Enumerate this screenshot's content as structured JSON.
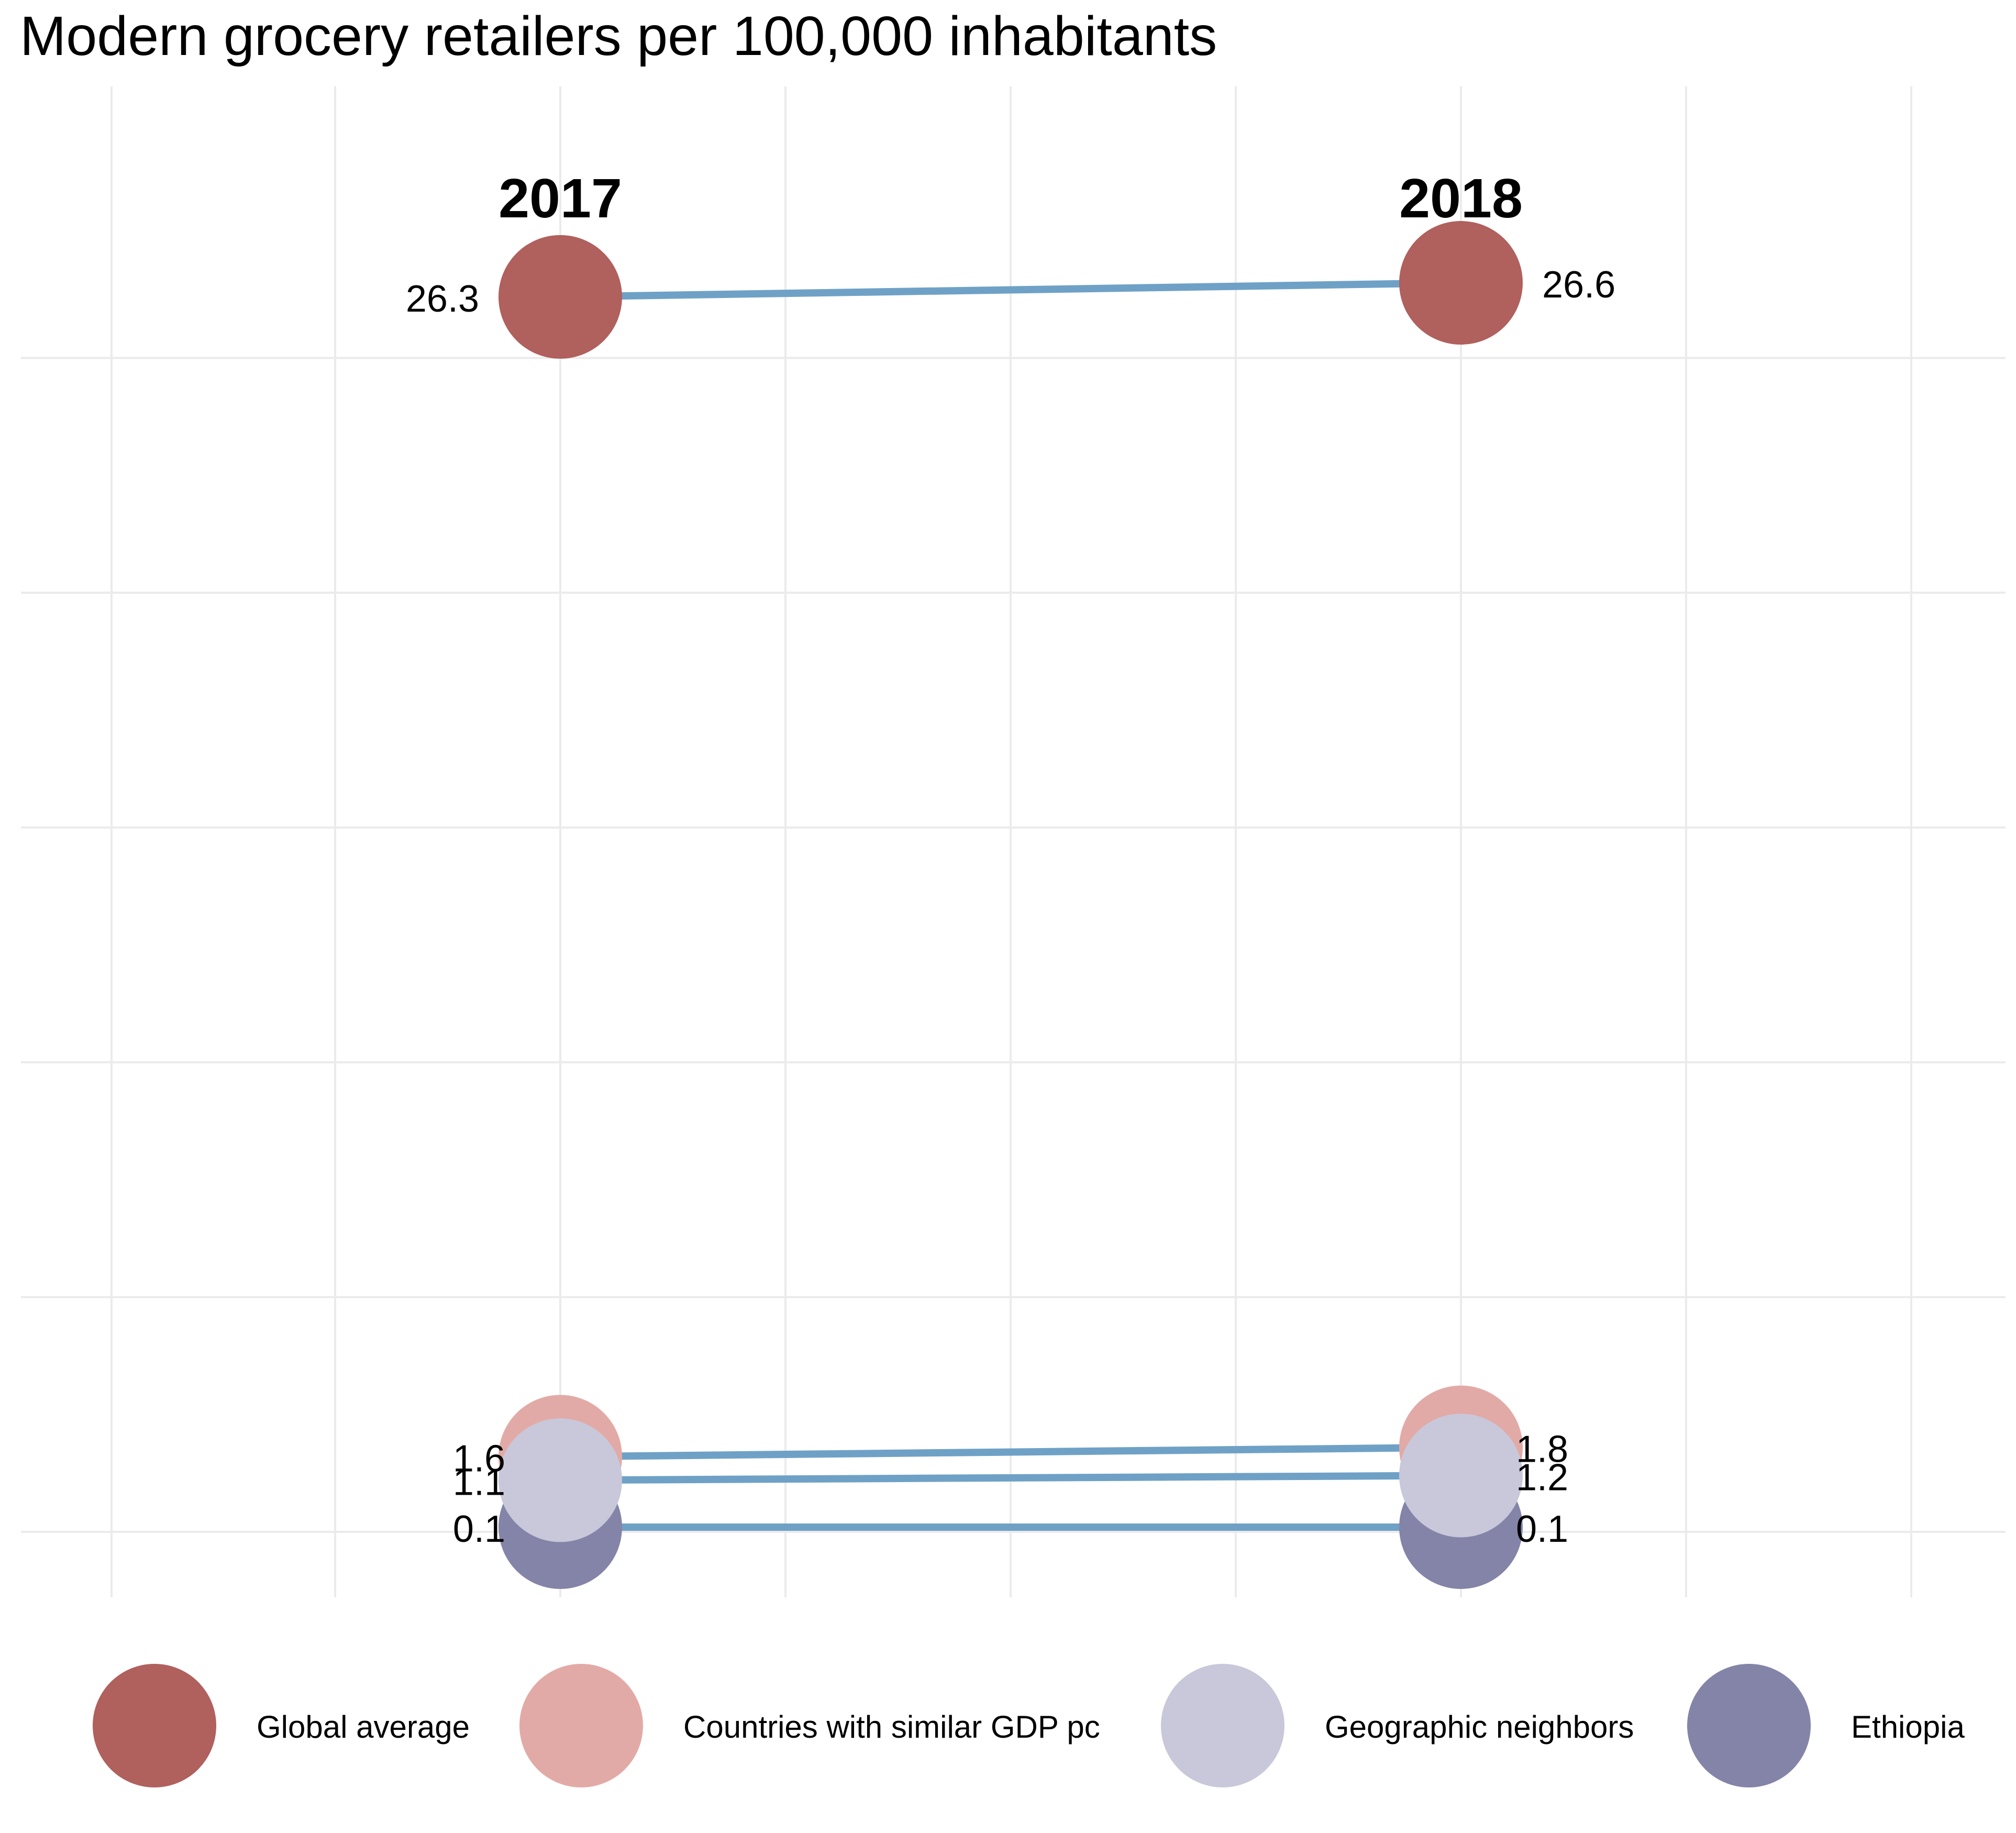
{
  "chart_data": {
    "type": "slope",
    "title": "Modern grocery retailers per 100,000 inhabitants",
    "categories": [
      "2017",
      "2018"
    ],
    "ylim": [
      -2.5,
      29.5
    ],
    "grid": true,
    "legend_position": "bottom",
    "line_color": "#6fa1c6",
    "series": [
      {
        "name": "Global average",
        "color": "#b0605d",
        "values": [
          26.3,
          26.6
        ],
        "labels": [
          "26.3",
          "26.6"
        ]
      },
      {
        "name": "Countries with similar GDP pc",
        "color": "#e2aaa6",
        "values": [
          1.6,
          1.8
        ],
        "labels": [
          "1.6",
          "1.8"
        ]
      },
      {
        "name": "Geographic neighbors",
        "color": "#c8c8da",
        "values": [
          1.1,
          1.2
        ],
        "labels": [
          "1.1",
          "1.2"
        ]
      },
      {
        "name": "Ethiopia",
        "color": "#8484a8",
        "values": [
          0.1,
          0.1
        ],
        "labels": [
          "0.1",
          "0.1"
        ]
      }
    ]
  }
}
